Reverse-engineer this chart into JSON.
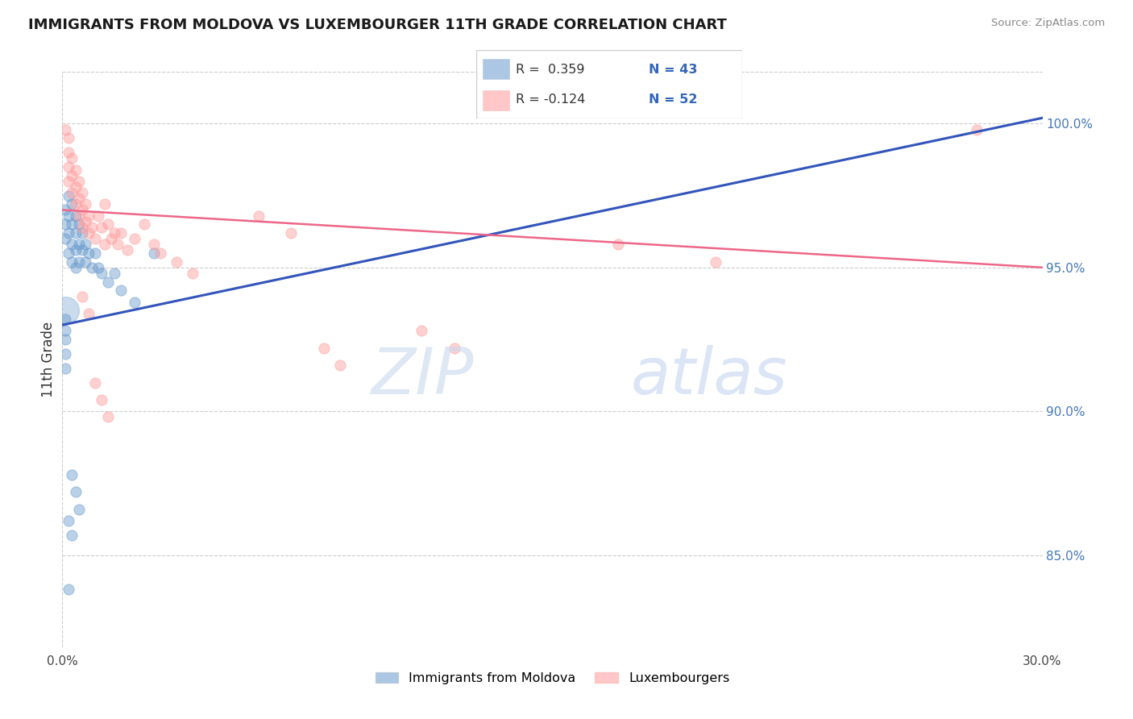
{
  "title": "IMMIGRANTS FROM MOLDOVA VS LUXEMBOURGER 11TH GRADE CORRELATION CHART",
  "source": "Source: ZipAtlas.com",
  "ylabel": "11th Grade",
  "ytick_labels": [
    "85.0%",
    "90.0%",
    "95.0%",
    "100.0%"
  ],
  "ytick_vals": [
    0.85,
    0.9,
    0.95,
    1.0
  ],
  "xlim": [
    0.0,
    0.3
  ],
  "ylim": [
    0.818,
    1.018
  ],
  "blue_color": "#6699CC",
  "pink_color": "#FF9999",
  "trendline_blue": "#3355BB",
  "trendline_pink": "#EE6688",
  "blue_trendline_x": [
    0.0,
    0.3
  ],
  "blue_trendline_y": [
    0.93,
    1.002
  ],
  "pink_trendline_x": [
    0.0,
    0.3
  ],
  "pink_trendline_y": [
    0.97,
    0.95
  ],
  "blue_scatter": [
    [
      0.001,
      0.97
    ],
    [
      0.001,
      0.965
    ],
    [
      0.001,
      0.96
    ],
    [
      0.002,
      0.975
    ],
    [
      0.002,
      0.968
    ],
    [
      0.002,
      0.962
    ],
    [
      0.002,
      0.955
    ],
    [
      0.003,
      0.972
    ],
    [
      0.003,
      0.965
    ],
    [
      0.003,
      0.958
    ],
    [
      0.003,
      0.952
    ],
    [
      0.004,
      0.968
    ],
    [
      0.004,
      0.962
    ],
    [
      0.004,
      0.956
    ],
    [
      0.004,
      0.95
    ],
    [
      0.005,
      0.965
    ],
    [
      0.005,
      0.958
    ],
    [
      0.005,
      0.952
    ],
    [
      0.006,
      0.962
    ],
    [
      0.006,
      0.956
    ],
    [
      0.007,
      0.958
    ],
    [
      0.007,
      0.952
    ],
    [
      0.008,
      0.955
    ],
    [
      0.009,
      0.95
    ],
    [
      0.01,
      0.955
    ],
    [
      0.011,
      0.95
    ],
    [
      0.012,
      0.948
    ],
    [
      0.014,
      0.945
    ],
    [
      0.016,
      0.948
    ],
    [
      0.018,
      0.942
    ],
    [
      0.022,
      0.938
    ],
    [
      0.028,
      0.955
    ],
    [
      0.001,
      0.932
    ],
    [
      0.001,
      0.928
    ],
    [
      0.001,
      0.925
    ],
    [
      0.001,
      0.92
    ],
    [
      0.001,
      0.915
    ],
    [
      0.003,
      0.878
    ],
    [
      0.004,
      0.872
    ],
    [
      0.005,
      0.866
    ],
    [
      0.002,
      0.862
    ],
    [
      0.003,
      0.857
    ],
    [
      0.002,
      0.838
    ]
  ],
  "pink_scatter": [
    [
      0.001,
      0.998
    ],
    [
      0.002,
      0.995
    ],
    [
      0.002,
      0.99
    ],
    [
      0.002,
      0.985
    ],
    [
      0.002,
      0.98
    ],
    [
      0.003,
      0.988
    ],
    [
      0.003,
      0.982
    ],
    [
      0.003,
      0.976
    ],
    [
      0.004,
      0.984
    ],
    [
      0.004,
      0.978
    ],
    [
      0.004,
      0.972
    ],
    [
      0.005,
      0.98
    ],
    [
      0.005,
      0.974
    ],
    [
      0.005,
      0.968
    ],
    [
      0.006,
      0.976
    ],
    [
      0.006,
      0.97
    ],
    [
      0.006,
      0.964
    ],
    [
      0.007,
      0.972
    ],
    [
      0.007,
      0.966
    ],
    [
      0.008,
      0.968
    ],
    [
      0.008,
      0.962
    ],
    [
      0.009,
      0.964
    ],
    [
      0.01,
      0.96
    ],
    [
      0.011,
      0.968
    ],
    [
      0.012,
      0.964
    ],
    [
      0.013,
      0.972
    ],
    [
      0.013,
      0.958
    ],
    [
      0.014,
      0.965
    ],
    [
      0.015,
      0.96
    ],
    [
      0.016,
      0.962
    ],
    [
      0.017,
      0.958
    ],
    [
      0.018,
      0.962
    ],
    [
      0.02,
      0.956
    ],
    [
      0.022,
      0.96
    ],
    [
      0.025,
      0.965
    ],
    [
      0.028,
      0.958
    ],
    [
      0.03,
      0.955
    ],
    [
      0.035,
      0.952
    ],
    [
      0.04,
      0.948
    ],
    [
      0.06,
      0.968
    ],
    [
      0.07,
      0.962
    ],
    [
      0.08,
      0.922
    ],
    [
      0.085,
      0.916
    ],
    [
      0.11,
      0.928
    ],
    [
      0.12,
      0.922
    ],
    [
      0.17,
      0.958
    ],
    [
      0.2,
      0.952
    ],
    [
      0.28,
      0.998
    ],
    [
      0.006,
      0.94
    ],
    [
      0.008,
      0.934
    ],
    [
      0.01,
      0.91
    ],
    [
      0.012,
      0.904
    ],
    [
      0.014,
      0.898
    ]
  ]
}
